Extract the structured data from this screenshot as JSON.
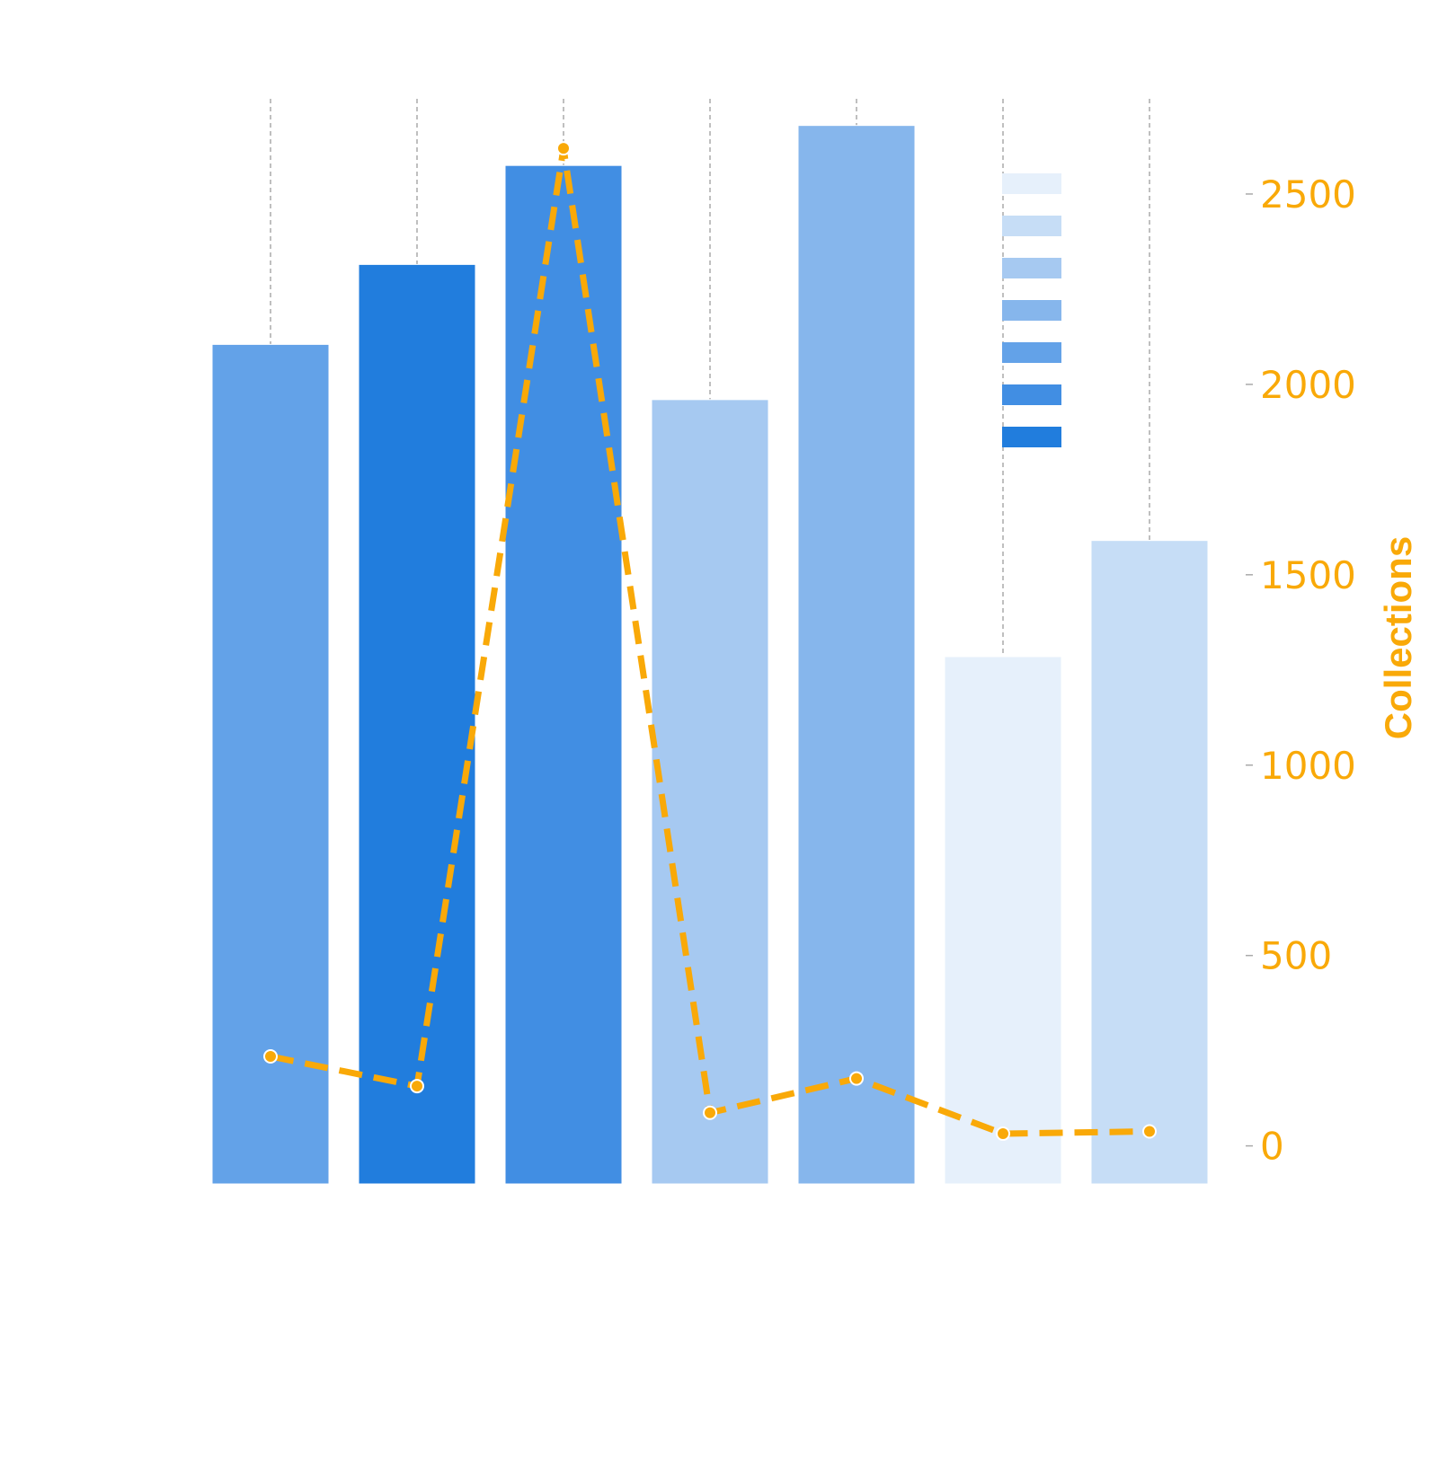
{
  "chart_data": {
    "type": "bar",
    "title": "",
    "xlabel": "",
    "categories": [
      "",
      "",
      "",
      "",
      "",
      "",
      ""
    ],
    "series": [
      {
        "name": "",
        "type": "bar",
        "values": [
          4410,
          4830,
          5350,
          4120,
          5560,
          2770,
          3380
        ],
        "colors": [
          "#63a2e8",
          "#217ddd",
          "#418ee3",
          "#a6c9f1",
          "#86b6ec",
          "#e6f0fb",
          "#c6ddf6"
        ],
        "axis": "left"
      },
      {
        "name": "",
        "type": "line",
        "values": [
          235,
          157,
          2620,
          87,
          177,
          32,
          38
        ],
        "color": "#f9a908",
        "style": "dashed",
        "axis": "right"
      }
    ],
    "y_left": {
      "label": "",
      "lim": [
        0,
        5700
      ],
      "ticks_visible": false
    },
    "y_right": {
      "label": "Collections",
      "lim": [
        -100,
        2750
      ],
      "ticks": [
        0,
        500,
        1000,
        1500,
        2000,
        2500
      ],
      "tick_labels": [
        "0",
        "500",
        "1000",
        "1500",
        "2000",
        "2500"
      ],
      "color": "#f9a908"
    },
    "grid": {
      "x": true,
      "y": false,
      "style": "dashed"
    },
    "legend": {
      "position": "top-right",
      "entries": [
        {
          "label": "",
          "color": "#e6f0fb"
        },
        {
          "label": "",
          "color": "#c6ddf6"
        },
        {
          "label": "",
          "color": "#a6c9f1"
        },
        {
          "label": "",
          "color": "#86b6ec"
        },
        {
          "label": "",
          "color": "#63a2e8"
        },
        {
          "label": "",
          "color": "#418ee3"
        },
        {
          "label": "",
          "color": "#217ddd"
        }
      ]
    }
  }
}
